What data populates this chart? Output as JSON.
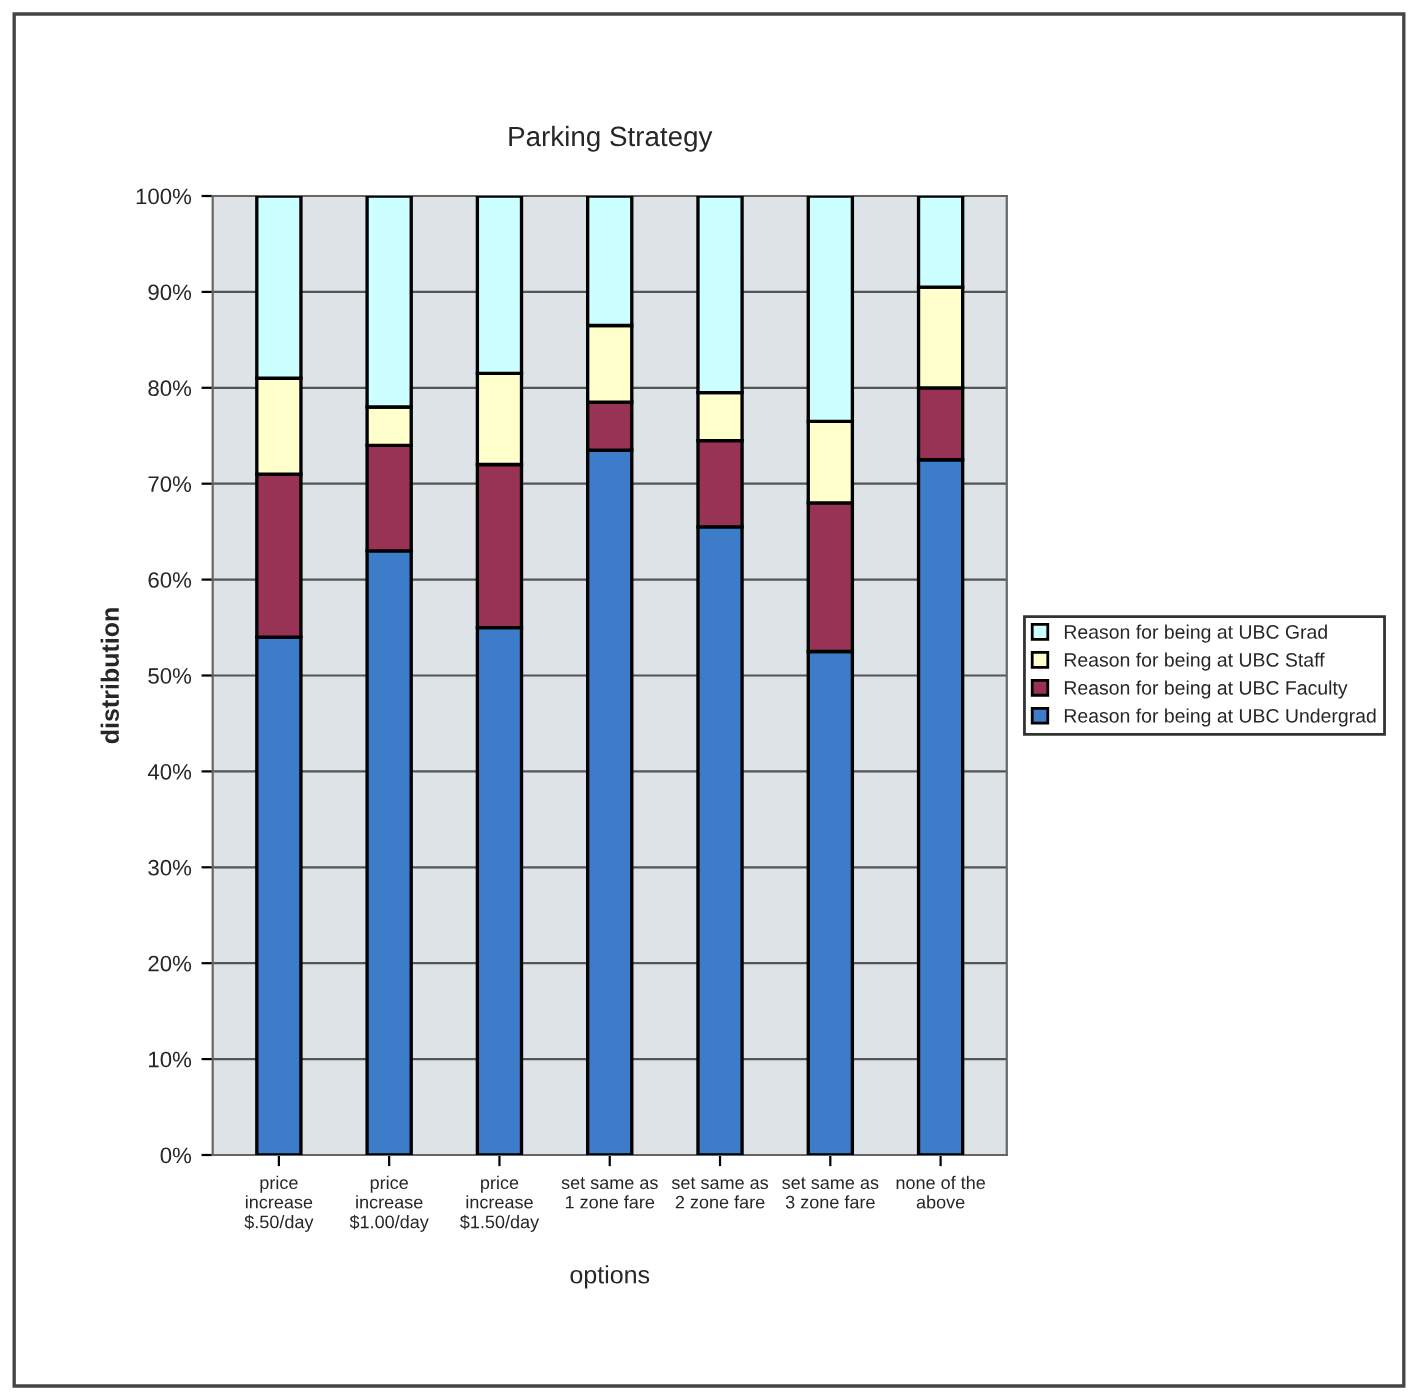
{
  "chart_data": {
    "type": "bar",
    "title": "Parking Strategy",
    "xlabel": "options",
    "ylabel": "distribution",
    "categories": [
      "price\nincrease\n$.50/day",
      "price\nincrease\n$1.00/day",
      "price\nincrease\n$1.50/day",
      "set same as\n1 zone fare",
      "set same as\n2 zone fare",
      "set same as\n3 zone fare",
      "none of the\nabove"
    ],
    "stacked": true,
    "series": [
      {
        "name": "Reason for being at UBC Undergrad",
        "color": "#3d7cc9",
        "values": [
          54,
          63,
          55,
          73.5,
          65.5,
          52.5,
          72.5
        ]
      },
      {
        "name": "Reason for being at UBC Faculty",
        "color": "#993355",
        "values": [
          17,
          11,
          17,
          5,
          9,
          15.5,
          7.5
        ]
      },
      {
        "name": "Reason for being at UBC Staff",
        "color": "#ffffcc",
        "values": [
          10,
          4,
          9.5,
          8,
          5,
          8.5,
          10.5
        ]
      },
      {
        "name": "Reason for being at UBC Grad",
        "color": "#ccffff",
        "values": [
          19,
          22,
          18.5,
          13.5,
          20.5,
          23.5,
          9.5
        ]
      }
    ],
    "ylim": [
      0,
      100
    ],
    "yticks": [
      {
        "value": 0,
        "label": "0%"
      },
      {
        "value": 10,
        "label": "10%"
      },
      {
        "value": 20,
        "label": "20%"
      },
      {
        "value": 30,
        "label": "30%"
      },
      {
        "value": 40,
        "label": "40%"
      },
      {
        "value": 50,
        "label": "50%"
      },
      {
        "value": 60,
        "label": "60%"
      },
      {
        "value": 70,
        "label": "70%"
      },
      {
        "value": 80,
        "label": "80%"
      },
      {
        "value": 90,
        "label": "90%"
      },
      {
        "value": 100,
        "label": "100%"
      }
    ],
    "grid": "y",
    "legend": "right"
  }
}
